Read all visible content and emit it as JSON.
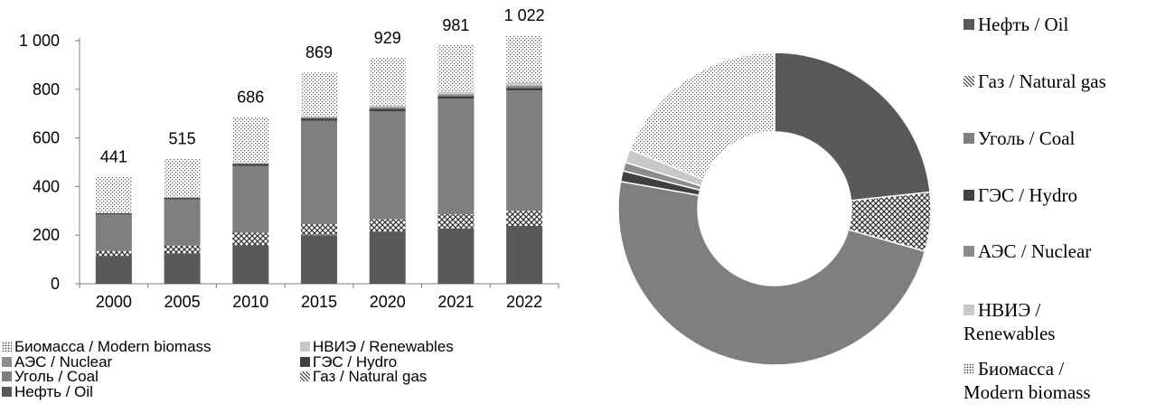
{
  "colors": {
    "oil": "#595959",
    "gas": "pattern-crosshatch",
    "coal": "#7f7f7f",
    "hydro": "#404040",
    "nuclear": "#8c8c8c",
    "renewables": "#c8c8c8",
    "biomass": "pattern-dots"
  },
  "chart_data": [
    {
      "type": "bar",
      "stacked": true,
      "categories": [
        "2000",
        "2005",
        "2010",
        "2015",
        "2020",
        "2021",
        "2022"
      ],
      "ylim": [
        0,
        1000
      ],
      "yticks": [
        "0",
        "200",
        "400",
        "600",
        "800",
        "1 000"
      ],
      "totals": [
        "441",
        "515",
        "686",
        "869",
        "929",
        "981",
        "1 022"
      ],
      "grid": false,
      "legend_position": "bottom",
      "series": [
        {
          "name": "Нефть / Oil",
          "key": "oil",
          "values": [
            115,
            125,
            158,
            200,
            215,
            228,
            238
          ]
        },
        {
          "name": "Газ / Natural gas",
          "key": "gas",
          "values": [
            20,
            32,
            52,
            45,
            50,
            58,
            62
          ]
        },
        {
          "name": "Уголь / Coal",
          "key": "coal",
          "values": [
            150,
            190,
            275,
            425,
            445,
            475,
            495
          ]
        },
        {
          "name": "ГЭС / Hydro",
          "key": "hydro",
          "values": [
            5,
            6,
            8,
            10,
            10,
            11,
            11
          ]
        },
        {
          "name": "АЭС / Nuclear",
          "key": "nuclear",
          "values": [
            1,
            2,
            3,
            5,
            7,
            8,
            9
          ]
        },
        {
          "name": "НВИЭ / Renewables",
          "key": "renewables",
          "values": [
            0,
            0,
            1,
            3,
            5,
            8,
            14
          ]
        },
        {
          "name": "Биомасса / Modern biomass",
          "key": "biomass",
          "values": [
            150,
            160,
            189,
            181,
            197,
            193,
            193
          ]
        }
      ]
    },
    {
      "type": "pie",
      "donut": true,
      "legend_position": "right",
      "slices": [
        {
          "name": "Нефть / Oil",
          "key": "oil",
          "value": 23.3
        },
        {
          "name": "Газ / Natural gas",
          "key": "gas",
          "value": 6.1
        },
        {
          "name": "Уголь / Coal",
          "key": "coal",
          "value": 48.4
        },
        {
          "name": "ГЭС / Hydro",
          "key": "hydro",
          "value": 1.1
        },
        {
          "name": "АЭС / Nuclear",
          "key": "nuclear",
          "value": 0.9
        },
        {
          "name": "НВИЭ / Renewables",
          "key": "renewables",
          "value": 1.4
        },
        {
          "name": "Биомасса / Modern biomass",
          "key": "biomass",
          "value": 18.8
        }
      ]
    }
  ],
  "legend_left": [
    {
      "key": "biomass",
      "label": "Биомасса / Modern biomass"
    },
    {
      "key": "renewables",
      "label": "НВИЭ / Renewables"
    },
    {
      "key": "nuclear",
      "label": "АЭС / Nuclear"
    },
    {
      "key": "hydro",
      "label": "ГЭС / Hydro"
    },
    {
      "key": "coal",
      "label": "Уголь / Coal"
    },
    {
      "key": "gas",
      "label": "Газ / Natural gas"
    },
    {
      "key": "oil",
      "label": "Нефть / Oil"
    }
  ],
  "legend_right": [
    {
      "key": "oil",
      "lines": [
        "Нефть / Oil"
      ]
    },
    {
      "key": "gas",
      "lines": [
        "Газ / Natural gas"
      ]
    },
    {
      "key": "coal",
      "lines": [
        "Уголь / Coal"
      ]
    },
    {
      "key": "hydro",
      "lines": [
        "ГЭС / Hydro"
      ]
    },
    {
      "key": "nuclear",
      "lines": [
        "АЭС / Nuclear"
      ]
    },
    {
      "key": "renewables",
      "lines": [
        "НВИЭ /",
        "Renewables"
      ]
    },
    {
      "key": "biomass",
      "lines": [
        "Биомасса /",
        "Modern biomass"
      ]
    }
  ]
}
